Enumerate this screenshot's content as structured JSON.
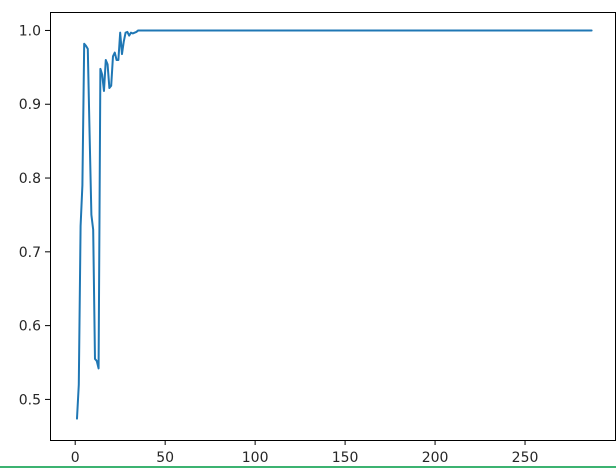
{
  "chart_data": {
    "type": "line",
    "title": "",
    "xlabel": "",
    "ylabel": "",
    "xlim": [
      -14,
      300
    ],
    "ylim": [
      0.445,
      1.025
    ],
    "x_ticks": [
      0,
      50,
      100,
      150,
      200,
      250
    ],
    "y_ticks": [
      0.5,
      0.6,
      0.7,
      0.8,
      0.9,
      1.0
    ],
    "x_tick_labels": [
      "0",
      "50",
      "100",
      "150",
      "200",
      "250"
    ],
    "y_tick_labels": [
      "0.5",
      "0.6",
      "0.7",
      "0.8",
      "0.9",
      "1.0"
    ],
    "grid": false,
    "series": [
      {
        "color": "#1f77b4",
        "x": [
          1,
          2,
          3,
          4,
          5,
          6,
          7,
          8,
          9,
          10,
          11,
          12,
          13,
          14,
          15,
          16,
          17,
          18,
          19,
          20,
          21,
          22,
          23,
          24,
          25,
          26,
          27,
          28,
          29,
          30,
          31,
          32,
          33,
          34,
          35,
          36,
          37,
          38,
          287
        ],
        "y": [
          0.474,
          0.52,
          0.735,
          0.79,
          0.982,
          0.979,
          0.975,
          0.86,
          0.75,
          0.73,
          0.555,
          0.552,
          0.542,
          0.948,
          0.94,
          0.918,
          0.96,
          0.954,
          0.922,
          0.925,
          0.965,
          0.97,
          0.96,
          0.96,
          0.997,
          0.968,
          0.985,
          0.997,
          0.998,
          0.993,
          0.997,
          0.996,
          0.997,
          0.998,
          1.0,
          1.0,
          1.0,
          1.0,
          1.0
        ]
      }
    ]
  },
  "page": {
    "divider_color": "#3cb371"
  }
}
